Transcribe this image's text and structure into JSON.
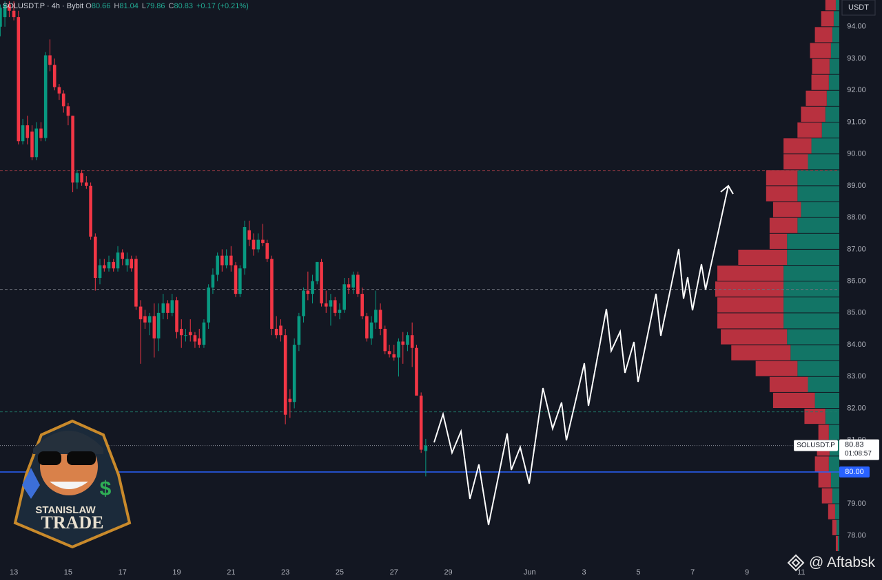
{
  "chart_data": {
    "type": "candlestick",
    "symbol": "SOLUSDT.P",
    "interval": "4h",
    "exchange": "Bybit",
    "ohlc_letters": [
      "O",
      "H",
      "L",
      "C"
    ],
    "change": "+0.17 (+0.21%)",
    "currency": "USDT",
    "up_color": "#089981",
    "down_color": "#f23645",
    "grid": false,
    "x": [
      12.5,
      12.67,
      12.83,
      13,
      13.17,
      13.33,
      13.5,
      13.67,
      13.83,
      14,
      14.17,
      14.33,
      14.5,
      14.67,
      14.83,
      15,
      15.17,
      15.33,
      15.5,
      15.67,
      15.83,
      16,
      16.17,
      16.33,
      16.5,
      16.67,
      16.83,
      17,
      17.17,
      17.33,
      17.5,
      17.67,
      17.83,
      18,
      18.17,
      18.33,
      18.5,
      18.67,
      18.83,
      19,
      19.17,
      19.33,
      19.5,
      19.67,
      19.83,
      20,
      20.17,
      20.33,
      20.5,
      20.67,
      20.83,
      21,
      21.17,
      21.33,
      21.5,
      21.67,
      21.83,
      22,
      22.17,
      22.33,
      22.5,
      22.67,
      22.83,
      23,
      23.17,
      23.33,
      23.5,
      23.67,
      23.83,
      24,
      24.17,
      24.33,
      24.5,
      24.67,
      24.83,
      25,
      25.17,
      25.33,
      25.5,
      25.67,
      25.83,
      26,
      26.17,
      26.33,
      26.5,
      26.67,
      26.83,
      27,
      27.17,
      27.33,
      27.5,
      27.67,
      27.83,
      28,
      28.17
    ],
    "open": [
      94.0,
      94.3,
      94.7,
      94.5,
      94.3,
      90.4,
      90.9,
      90.7,
      89.9,
      90.8,
      90.5,
      93.1,
      92.8,
      92.1,
      91.9,
      91.5,
      91.2,
      89.1,
      89.4,
      89.1,
      89.0,
      87.4,
      86.1,
      86.5,
      86.4,
      86.6,
      86.4,
      86.9,
      86.5,
      86.7,
      86.7,
      85.2,
      84.9,
      84.7,
      84.9,
      84.2,
      85.0,
      85.3,
      85.0,
      85.4,
      84.5,
      84.3,
      84.4,
      84.3,
      84.2,
      84.0,
      84.7,
      85.8,
      86.2,
      86.8,
      86.5,
      86.8,
      86.5,
      85.6,
      86.4,
      87.6,
      87.3,
      87.0,
      87.3,
      87.2,
      86.7,
      84.5,
      84.6,
      84.3,
      82.3,
      82.2,
      84.0,
      84.9,
      85.7,
      85.6,
      86.0,
      86.6,
      85.3,
      85.2,
      85.4,
      85.0,
      85.1,
      85.9,
      85.8,
      86.2,
      85.6,
      84.9,
      84.2,
      84.7,
      85.1,
      84.5,
      83.8,
      83.7,
      83.6,
      84.1,
      84.0,
      84.3,
      83.9,
      82.4,
      80.66
    ],
    "high": [
      94.7,
      94.8,
      94.8,
      94.8,
      94.5,
      91.1,
      91.2,
      90.9,
      91.0,
      91.0,
      93.2,
      93.6,
      93.0,
      92.2,
      92.0,
      91.6,
      91.2,
      89.5,
      89.5,
      89.3,
      89.1,
      87.5,
      86.7,
      86.7,
      86.8,
      86.7,
      87.1,
      87.0,
      86.9,
      86.8,
      86.8,
      85.4,
      85.1,
      85.0,
      85.3,
      85.3,
      85.6,
      85.4,
      85.6,
      85.5,
      84.8,
      84.5,
      84.8,
      84.4,
      84.5,
      84.8,
      85.9,
      86.4,
      86.9,
      87.0,
      87.0,
      87.1,
      86.6,
      86.5,
      87.9,
      87.9,
      87.5,
      87.5,
      87.8,
      87.3,
      86.8,
      84.9,
      84.8,
      84.5,
      82.6,
      84.2,
      85.0,
      85.8,
      86.3,
      86.2,
      86.6,
      86.7,
      85.7,
      85.6,
      85.5,
      85.3,
      86.1,
      86.1,
      86.3,
      86.3,
      85.8,
      85.0,
      84.9,
      85.7,
      85.3,
      84.6,
      84.0,
      84.0,
      84.2,
      84.4,
      84.4,
      84.7,
      84.0,
      82.5,
      81.04
    ],
    "low": [
      93.7,
      94.0,
      94.3,
      94.2,
      90.3,
      90.3,
      90.3,
      89.8,
      89.8,
      90.4,
      90.4,
      92.6,
      92.0,
      91.7,
      91.3,
      90.9,
      88.8,
      88.9,
      89.0,
      88.9,
      87.3,
      85.7,
      85.9,
      86.3,
      86.3,
      86.3,
      86.3,
      86.5,
      86.3,
      86.3,
      85.1,
      83.4,
      84.5,
      84.3,
      83.6,
      83.8,
      84.8,
      84.8,
      84.9,
      84.2,
      83.9,
      84.1,
      84.1,
      83.9,
      83.9,
      83.9,
      84.5,
      85.6,
      86.0,
      86.3,
      86.4,
      86.3,
      85.5,
      85.5,
      86.2,
      87.1,
      86.8,
      86.9,
      87.1,
      86.6,
      84.3,
      84.2,
      84.1,
      81.5,
      81.7,
      82.0,
      83.8,
      84.7,
      85.4,
      85.3,
      85.9,
      85.2,
      85.0,
      84.6,
      84.9,
      84.8,
      85.0,
      85.6,
      85.6,
      85.5,
      84.8,
      84.1,
      84.0,
      84.5,
      84.3,
      83.7,
      83.6,
      83.5,
      83.0,
      83.4,
      83.8,
      83.3,
      82.4,
      80.6,
      79.86
    ],
    "close": [
      94.6,
      94.7,
      94.5,
      94.3,
      90.4,
      90.9,
      90.5,
      89.9,
      90.8,
      90.5,
      93.1,
      92.8,
      92.1,
      91.9,
      91.5,
      91.2,
      89.1,
      89.4,
      89.1,
      89.0,
      87.4,
      86.1,
      86.5,
      86.4,
      86.6,
      86.4,
      86.9,
      86.7,
      86.7,
      86.4,
      85.2,
      84.8,
      84.7,
      84.9,
      84.2,
      85.0,
      85.3,
      85.0,
      85.4,
      84.4,
      84.3,
      84.3,
      84.3,
      84.1,
      84.0,
      84.7,
      85.8,
      86.2,
      86.8,
      86.5,
      86.8,
      86.5,
      85.6,
      86.4,
      87.7,
      87.3,
      87.0,
      87.3,
      87.2,
      86.7,
      84.5,
      84.3,
      84.3,
      81.8,
      82.2,
      84.0,
      84.9,
      85.7,
      85.6,
      86.0,
      86.6,
      85.3,
      85.2,
      85.4,
      85.0,
      85.1,
      85.9,
      85.8,
      86.2,
      85.6,
      84.9,
      84.2,
      84.7,
      85.1,
      84.5,
      83.8,
      83.7,
      83.6,
      84.1,
      84.0,
      84.3,
      83.9,
      82.4,
      80.7,
      80.83
    ],
    "xlim": [
      12.49,
      43.4
    ],
    "xticks": [
      13,
      15,
      17,
      19,
      21,
      23,
      25,
      27,
      29,
      {
        "value": 32,
        "label": "Jun"
      },
      {
        "value": 34,
        "label": "3"
      },
      {
        "value": 36,
        "label": "5"
      },
      {
        "value": 38,
        "label": "7"
      },
      {
        "value": 40,
        "label": "9"
      },
      {
        "value": 42,
        "label": "11"
      }
    ],
    "ylim": [
      77.1,
      94.84
    ],
    "yticks": [
      {
        "value": 78,
        "label": "78.00"
      },
      {
        "value": 79,
        "label": "79.00"
      },
      {
        "value": 80,
        "label": "80.00"
      },
      {
        "value": 81,
        "label": "81.00"
      },
      {
        "value": 82,
        "label": "82.00"
      },
      {
        "value": 83,
        "label": "83.00"
      },
      {
        "value": 84,
        "label": "84.00"
      },
      {
        "value": 85,
        "label": "85.00"
      },
      {
        "value": 86,
        "label": "86.00"
      },
      {
        "value": 87,
        "label": "87.00"
      },
      {
        "value": 88,
        "label": "88.00"
      },
      {
        "value": 89,
        "label": "89.00"
      },
      {
        "value": 90,
        "label": "90.00"
      },
      {
        "value": 91,
        "label": "91.00"
      },
      {
        "value": 92,
        "label": "92.00"
      },
      {
        "value": 93,
        "label": "93.00"
      },
      {
        "value": 94,
        "label": "94.00"
      }
    ],
    "levels": [
      {
        "value": 89.48,
        "color": "#9e3a44",
        "dash": "4 3"
      },
      {
        "value": 85.74,
        "color": "#6b6f7a",
        "dash": "4 3"
      },
      {
        "value": 81.89,
        "color": "#1f7a6a",
        "dash": "4 3"
      }
    ],
    "support": {
      "value": 80,
      "label": "80.00",
      "color": "#2962ff"
    },
    "countdown": "01:08:57",
    "volume_profile": {
      "up_color": "#127566",
      "down_color": "#b8313f",
      "bin_size": 0.5,
      "prices": [
        77.5,
        78,
        78.5,
        79,
        79.5,
        80,
        80.5,
        81,
        81.5,
        82,
        82.5,
        83,
        83.5,
        84,
        84.5,
        85,
        85.5,
        86,
        86.5,
        87,
        87.5,
        88,
        88.5,
        89,
        89.5,
        90,
        90.5,
        91,
        91.5,
        92,
        92.5,
        93,
        93.5,
        94,
        94.5
      ],
      "up": [
        2,
        4,
        6,
        10,
        12,
        15,
        14,
        15,
        20,
        35,
        45,
        60,
        70,
        75,
        80,
        80,
        80,
        80,
        75,
        75,
        60,
        55,
        60,
        60,
        45,
        40,
        25,
        20,
        18,
        15,
        14,
        12,
        10,
        8,
        5
      ],
      "down": [
        3,
        6,
        10,
        15,
        18,
        20,
        18,
        15,
        30,
        60,
        55,
        60,
        85,
        95,
        95,
        95,
        98,
        95,
        70,
        25,
        40,
        40,
        45,
        45,
        35,
        40,
        35,
        35,
        30,
        25,
        25,
        30,
        25,
        18,
        15
      ]
    }
  },
  "logo": {
    "line1": "STANISLAW",
    "line2": "TRADE"
  },
  "watermark": "@ Aftabsk"
}
